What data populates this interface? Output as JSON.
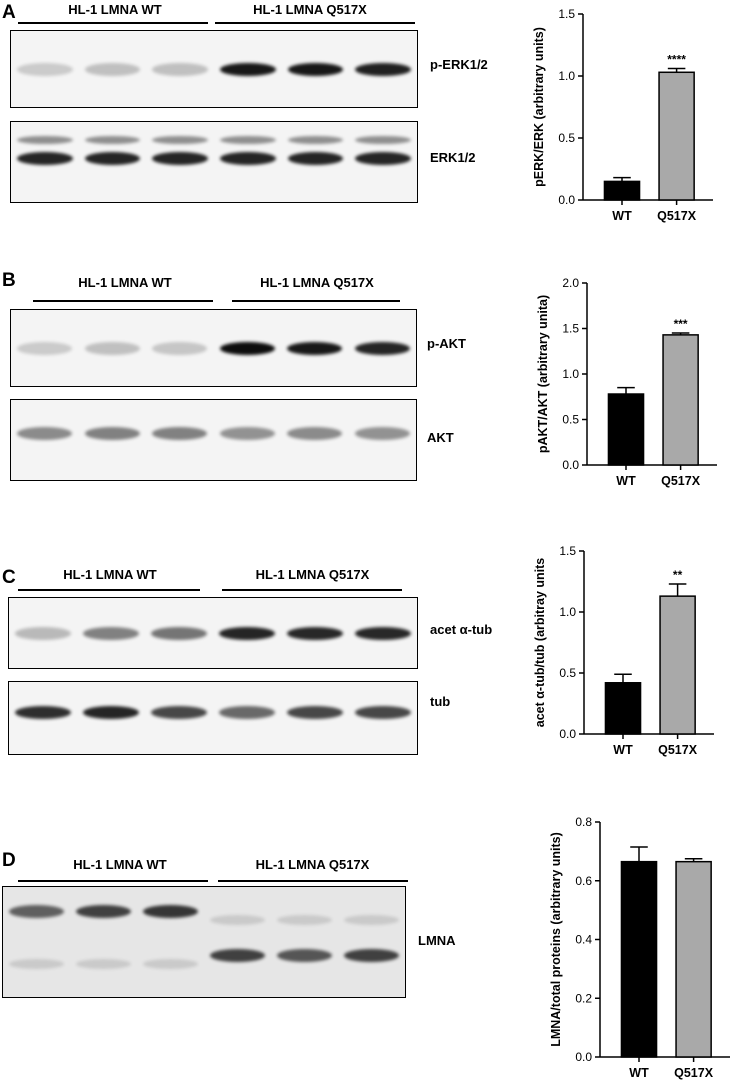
{
  "panels": [
    {
      "label": "A",
      "groups": [
        "HL-1 LMNA WT",
        "HL-1 LMNA Q517X"
      ],
      "blots": [
        {
          "label": "p-ERK1/2",
          "bands": [
            0.18,
            0.22,
            0.22,
            0.95,
            0.95,
            0.92
          ]
        },
        {
          "label": "ERK1/2",
          "bands": [
            0.9,
            0.9,
            0.9,
            0.9,
            0.9,
            0.9
          ]
        }
      ]
    },
    {
      "label": "B",
      "groups": [
        "HL-1 LMNA WT",
        "HL-1 LMNA Q517X"
      ],
      "blots": [
        {
          "label": "p-AKT",
          "bands": [
            0.18,
            0.22,
            0.2,
            1.0,
            0.95,
            0.9
          ]
        },
        {
          "label": "AKT",
          "bands": [
            0.45,
            0.5,
            0.5,
            0.42,
            0.45,
            0.42
          ]
        }
      ]
    },
    {
      "label": "C",
      "groups": [
        "HL-1 LMNA WT",
        "HL-1 LMNA Q517X"
      ],
      "blots": [
        {
          "label": "acet α-tub",
          "bands": [
            0.25,
            0.5,
            0.55,
            0.9,
            0.88,
            0.88
          ]
        },
        {
          "label": "tub",
          "bands": [
            0.85,
            0.9,
            0.75,
            0.6,
            0.75,
            0.75
          ]
        }
      ]
    },
    {
      "label": "D",
      "groups": [
        "HL-1 LMNA WT",
        "HL-1 LMNA Q517X"
      ],
      "blots": [
        {
          "label": "LMNA",
          "bands": [
            0.65,
            0.8,
            0.85,
            0.8,
            0.7,
            0.8
          ]
        }
      ]
    }
  ],
  "chart_data": [
    {
      "type": "bar",
      "categories": [
        "WT",
        "Q517X"
      ],
      "values": [
        0.15,
        1.03
      ],
      "errors": [
        0.03,
        0.03
      ],
      "ylabel": "pERK/ERK (arbitrary units)",
      "ylim": [
        0,
        1.5
      ],
      "yticks": [
        "0.0",
        "0.5",
        "1.0",
        "1.5"
      ],
      "significance": "****",
      "colors": [
        "#000000",
        "#a9a9a9"
      ]
    },
    {
      "type": "bar",
      "categories": [
        "WT",
        "Q517X"
      ],
      "values": [
        0.78,
        1.43
      ],
      "errors": [
        0.07,
        0.02
      ],
      "ylabel": "pAKT/AKT (arbitrary unita)",
      "ylim": [
        0,
        2.0
      ],
      "yticks": [
        "0.0",
        "0.5",
        "1.0",
        "1.5",
        "2.0"
      ],
      "significance": "***",
      "colors": [
        "#000000",
        "#a9a9a9"
      ]
    },
    {
      "type": "bar",
      "categories": [
        "WT",
        "Q517X"
      ],
      "values": [
        0.42,
        1.13
      ],
      "errors": [
        0.07,
        0.1
      ],
      "ylabel": "acet α-tub/tub (arbitray units",
      "ylim": [
        0,
        1.5
      ],
      "yticks": [
        "0.0",
        "0.5",
        "1.0",
        "1.5"
      ],
      "significance": "**",
      "colors": [
        "#000000",
        "#a9a9a9"
      ]
    },
    {
      "type": "bar",
      "categories": [
        "WT",
        "Q517X"
      ],
      "values": [
        0.665,
        0.665
      ],
      "errors": [
        0.05,
        0.01
      ],
      "ylabel": "LMNA/total proteins (arbitrary units)",
      "ylim": [
        0,
        0.8
      ],
      "yticks": [
        "0.0",
        "0.2",
        "0.4",
        "0.6",
        "0.8"
      ],
      "significance": "",
      "colors": [
        "#000000",
        "#a9a9a9"
      ]
    }
  ]
}
